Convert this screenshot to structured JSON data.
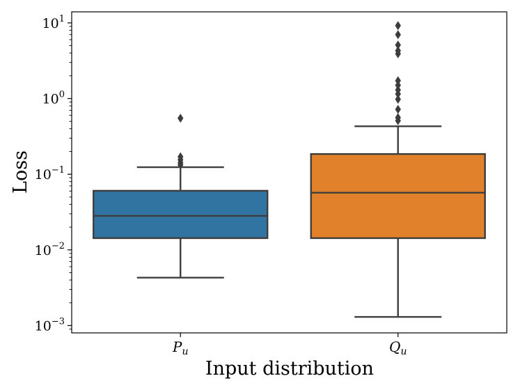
{
  "chart_data": {
    "type": "box",
    "xlabel": "Input distribution",
    "ylabel": "Loss",
    "yscale": "log",
    "ylim": [
      0.0008,
      14
    ],
    "yticks": [
      {
        "value": 0.001,
        "base": "10",
        "exp": "−3"
      },
      {
        "value": 0.01,
        "base": "10",
        "exp": "−2"
      },
      {
        "value": 0.1,
        "base": "10",
        "exp": "−1"
      },
      {
        "value": 1,
        "base": "10",
        "exp": "0"
      },
      {
        "value": 10,
        "base": "10",
        "exp": "1"
      }
    ],
    "grid": false,
    "categories": [
      {
        "main": "P",
        "sub": "u"
      },
      {
        "main": "Q",
        "sub": "u"
      }
    ],
    "boxes": [
      {
        "color": "#3274a1",
        "whisker_low": 0.0043,
        "q1": 0.0143,
        "median": 0.0282,
        "q3": 0.0605,
        "whisker_high": 0.124,
        "outliers": [
          0.55,
          0.17,
          0.155,
          0.142,
          0.133
        ]
      },
      {
        "color": "#e1812c",
        "whisker_low": 0.0013,
        "q1": 0.0143,
        "median": 0.057,
        "q3": 0.185,
        "whisker_high": 0.43,
        "outliers": [
          9.2,
          7.0,
          5.1,
          4.3,
          3.9,
          1.72,
          1.5,
          1.3,
          1.15,
          0.98,
          0.72,
          0.56,
          0.51
        ]
      }
    ]
  }
}
